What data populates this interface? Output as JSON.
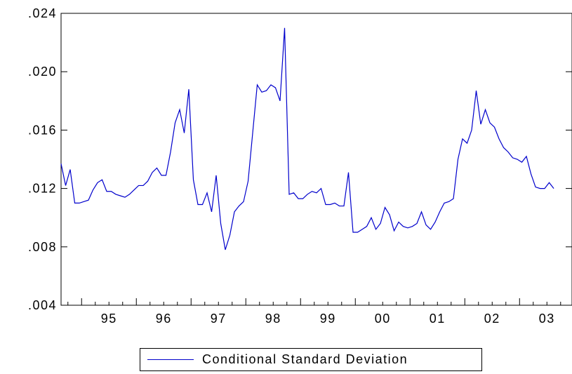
{
  "chart_data": {
    "type": "line",
    "title": "",
    "xlabel": "",
    "ylabel": "",
    "ylim": [
      0.004,
      0.024
    ],
    "yticks": [
      ".004",
      ".008",
      ".012",
      ".016",
      ".020",
      ".024"
    ],
    "yticks_values": [
      0.004,
      0.008,
      0.012,
      0.016,
      0.02,
      0.024
    ],
    "xlim": [
      1994.625,
      2003.958
    ],
    "xtick_labels": [
      "95",
      "96",
      "97",
      "98",
      "99",
      "00",
      "01",
      "02",
      "03"
    ],
    "xtick_positions": [
      1995.5,
      1996.5,
      1997.5,
      1998.5,
      1999.5,
      2000.5,
      2001.5,
      2002.5,
      2003.5
    ],
    "year_boundaries": [
      1995,
      1996,
      1997,
      1998,
      1999,
      2000,
      2001,
      2002,
      2003
    ],
    "grid": false,
    "legend_placement": "bottom-center",
    "series": [
      {
        "name": "Conditional Standard Deviation",
        "color": "#0000cc",
        "x_start": 1994.625,
        "x_step_months": 1,
        "values": [
          0.0137,
          0.0122,
          0.0133,
          0.011,
          0.011,
          0.0111,
          0.0112,
          0.0119,
          0.0124,
          0.0126,
          0.0118,
          0.0118,
          0.0116,
          0.0115,
          0.0114,
          0.0116,
          0.0119,
          0.0122,
          0.0122,
          0.0125,
          0.0131,
          0.0134,
          0.0129,
          0.0129,
          0.0145,
          0.0165,
          0.0174,
          0.0158,
          0.0188,
          0.0126,
          0.0109,
          0.0109,
          0.0117,
          0.0104,
          0.0129,
          0.0096,
          0.0078,
          0.0088,
          0.0104,
          0.0108,
          0.0111,
          0.0125,
          0.0158,
          0.0191,
          0.0186,
          0.0187,
          0.0191,
          0.0189,
          0.018,
          0.023,
          0.0116,
          0.0117,
          0.0113,
          0.0113,
          0.0116,
          0.0118,
          0.0117,
          0.012,
          0.0109,
          0.0109,
          0.011,
          0.0108,
          0.0108,
          0.0131,
          0.009,
          0.009,
          0.0092,
          0.0094,
          0.01,
          0.0092,
          0.0096,
          0.0107,
          0.0102,
          0.0091,
          0.0097,
          0.0094,
          0.0093,
          0.0094,
          0.0096,
          0.0104,
          0.0095,
          0.0092,
          0.0097,
          0.0104,
          0.011,
          0.0111,
          0.0113,
          0.014,
          0.0154,
          0.0151,
          0.016,
          0.0187,
          0.0164,
          0.0174,
          0.0165,
          0.0162,
          0.0154,
          0.0148,
          0.0145,
          0.0141,
          0.014,
          0.0138,
          0.0142,
          0.013,
          0.0121,
          0.012,
          0.012,
          0.0124,
          0.012
        ]
      }
    ]
  },
  "legend": {
    "label": "Conditional Standard Deviation"
  }
}
